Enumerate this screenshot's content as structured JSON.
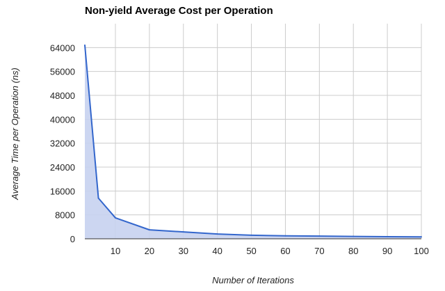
{
  "chart_data": {
    "type": "area",
    "title": "Non-yield Average Cost per Operation",
    "xlabel": "Number of Iterations",
    "ylabel": "Average Time per Operation (ns)",
    "xlim": [
      1,
      100
    ],
    "ylim": [
      0,
      72000
    ],
    "x_ticks": [
      10,
      20,
      30,
      40,
      50,
      60,
      70,
      80,
      90,
      100
    ],
    "y_ticks": [
      0,
      8000,
      16000,
      24000,
      32000,
      40000,
      48000,
      56000,
      64000
    ],
    "grid": true,
    "legend": "none",
    "series": [
      {
        "x": [
          1,
          5,
          10,
          20,
          30,
          40,
          50,
          60,
          70,
          80,
          90,
          100
        ],
        "values": [
          64800,
          13600,
          7000,
          3000,
          2300,
          1600,
          1200,
          1000,
          900,
          800,
          700,
          650
        ],
        "color": "#3366cc",
        "fill": "#c6d1f0"
      }
    ]
  }
}
